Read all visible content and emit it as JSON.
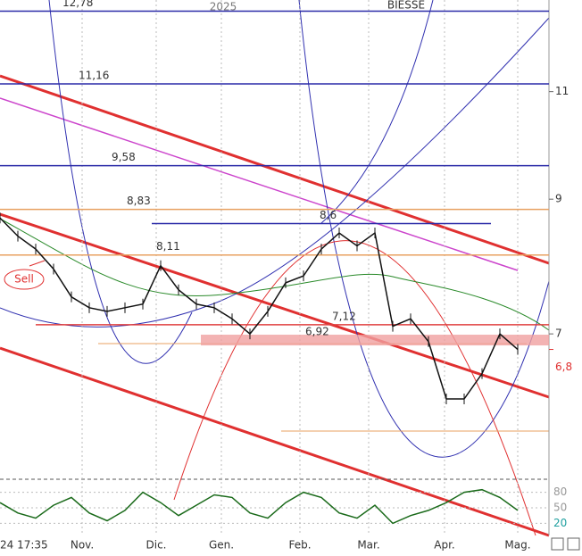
{
  "chart_data": {
    "type": "line",
    "title": "BIESSE",
    "year_label": "2025",
    "timestamp": "24 17:35",
    "log_scale": true,
    "ylim": [
      5.4,
      13.05
    ],
    "yticks": [
      11,
      9,
      7,
      {
        "value": 6.8,
        "label": "6,8"
      }
    ],
    "x_labels": [
      {
        "value": 4.6,
        "label": "Nov."
      },
      {
        "value": 8.75,
        "label": "Dic."
      },
      {
        "value": 12.4,
        "label": "Gen."
      },
      {
        "value": 16.8,
        "label": "Feb."
      },
      {
        "value": 20.65,
        "label": "Mar."
      },
      {
        "value": 24.9,
        "label": "Apr."
      },
      {
        "value": 29,
        "label": "Mag."
      }
    ],
    "series": [
      {
        "name": "BIESSE",
        "color": "#111111",
        "values": [
          8.69,
          8.4,
          8.2,
          7.9,
          7.5,
          7.35,
          7.3,
          7.35,
          7.4,
          7.95,
          7.6,
          7.4,
          7.35,
          7.2,
          7.0,
          7.3,
          7.7,
          7.8,
          8.2,
          8.45,
          8.25,
          8.45,
          7.1,
          7.2,
          6.9,
          6.2,
          6.2,
          6.5,
          7.0,
          6.8
        ]
      }
    ],
    "levels": [
      {
        "value": 12.78,
        "label": "12,78",
        "color": "#2a2aa8"
      },
      {
        "value": 11.16,
        "label": "11,16",
        "color": "#2a2aa8"
      },
      {
        "value": 9.58,
        "label": "9,58",
        "color": "#2a2aa8"
      },
      {
        "value": 8.83,
        "label": "8,83",
        "color": "#e8a060"
      },
      {
        "value": 8.6,
        "label": "8,6",
        "color": "#2a2aa8"
      },
      {
        "value": 8.11,
        "label": "8,11",
        "color": "#e8a060"
      },
      {
        "value": 7.12,
        "label": "7,12",
        "color": "#e04040"
      },
      {
        "value": 6.92,
        "label": "6,92",
        "color": "#f0a0a0"
      }
    ],
    "annotation": "Sell",
    "oscillator": {
      "ylim": [
        0,
        100
      ],
      "yticks": [
        80,
        50,
        20
      ],
      "color": "#1a6a1a",
      "values": [
        60,
        40,
        30,
        55,
        70,
        40,
        25,
        45,
        80,
        60,
        35,
        55,
        75,
        70,
        40,
        30,
        60,
        80,
        70,
        40,
        30,
        55,
        20,
        35,
        45,
        60,
        80,
        85,
        70,
        45
      ]
    }
  }
}
